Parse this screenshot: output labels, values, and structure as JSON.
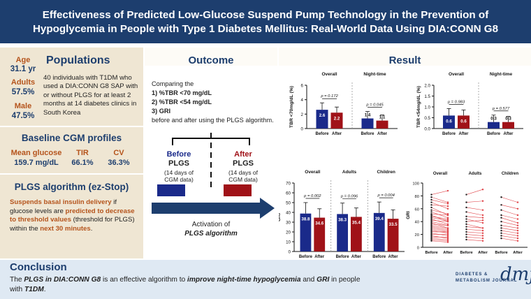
{
  "header": {
    "title_line1": "Effectiveness of Predicted Low-Glucose Suspend Pump Technology in the Prevention of",
    "title_line2": "Hypoglycemia in People with Type 1 Diabetes Mellitus: Real-World Data Using DIA:CONN G8"
  },
  "populations": {
    "title": "Populations",
    "stats": [
      {
        "label": "Age",
        "value": "31.1 yr"
      },
      {
        "label": "Adults",
        "value": "57.5%"
      },
      {
        "label": "Male",
        "value": "47.5%"
      }
    ],
    "description": "40 individuals with T1DM who used a DIA:CONN G8 SAP with or without PLGS for at least 2 months at 14 diabetes clinics in South Korea"
  },
  "baseline": {
    "title": "Baseline CGM profiles",
    "items": [
      {
        "label": "Mean glucose",
        "value": "159.7 mg/dL"
      },
      {
        "label": "TIR",
        "value": "66.1%"
      },
      {
        "label": "CV",
        "value": "36.3%"
      }
    ]
  },
  "plgs": {
    "title": "PLGS algorithm (ez-Stop)",
    "seg1": "Suspends basal insulin delivery",
    "seg2": " if glucose levels are ",
    "seg3": "predicted to decrease to threshold values",
    "seg4": " (threshold for PLGS) within the ",
    "seg5": "next 30 minutes",
    "seg6": "."
  },
  "outcome": {
    "title": "Outcome",
    "intro": "Comparing the",
    "items": [
      "1)  %TBR <70 mg/dL",
      "2)  %TBR <54 mg/dL",
      "3)  GRI"
    ],
    "outro": "before and after using the PLGS algorithm.",
    "before_label1": "Before",
    "before_label2": "PLGS",
    "before_sub1": "(14 days of",
    "before_sub2": "CGM data)",
    "after_label1": "After",
    "after_label2": "PLGS",
    "after_sub1": "(14 days of",
    "after_sub2": "CGM data)",
    "activation1": "Activation of",
    "activation2": "PLGS algorithm",
    "before_color": "#1a2a8a",
    "after_color": "#a01218"
  },
  "result": {
    "title": "Result"
  },
  "chart_data": [
    {
      "type": "bar",
      "ylabel": "TBR <70mg/dL (%)",
      "ylim": [
        0,
        6
      ],
      "yticks": [
        "0",
        "2",
        "4",
        "6"
      ],
      "groups": [
        {
          "title": "Overall",
          "p": "p = 0.172",
          "before": 2.6,
          "after": 2.2,
          "before_label": "2.6",
          "after_label": "2.2"
        },
        {
          "title": "Night-time",
          "p": "p = 0.045",
          "before": 1.4,
          "after": 1.1,
          "before_label": "1.4",
          "after_label": "1.1"
        }
      ],
      "categories": [
        "Before",
        "After"
      ]
    },
    {
      "type": "bar",
      "ylabel": "TBR <54mg/dL (%)",
      "ylim": [
        0,
        2.0
      ],
      "yticks": [
        "0.0",
        "0.5",
        "1.0",
        "1.5",
        "2.0"
      ],
      "groups": [
        {
          "title": "Overall",
          "p": "p = 0.983",
          "before": 0.6,
          "after": 0.6,
          "before_label": "0.6",
          "after_label": "0.6"
        },
        {
          "title": "Night-time",
          "p": "p = 0.577",
          "before": 0.3,
          "after": 0.3,
          "before_label": "0.3",
          "after_label": "0.3"
        }
      ],
      "categories": [
        "Before",
        "After"
      ]
    },
    {
      "type": "bar",
      "ylabel": "GRI",
      "ylim": [
        0,
        70
      ],
      "yticks": [
        "0",
        "10",
        "20",
        "30",
        "40",
        "50",
        "60",
        "70"
      ],
      "groups": [
        {
          "title": "Overall",
          "p": "p = 0.002",
          "before": 38.8,
          "after": 34.6,
          "before_label": "38.8",
          "after_label": "34.6"
        },
        {
          "title": "Adults",
          "p": "p = 0.096",
          "before": 38.3,
          "after": 35.4,
          "before_label": "38.3",
          "after_label": "35.4"
        },
        {
          "title": "Children",
          "p": "p = 0.004",
          "before": 39.4,
          "after": 33.5,
          "before_label": "39.4",
          "after_label": "33.5"
        }
      ],
      "categories": [
        "Before",
        "After"
      ]
    },
    {
      "type": "line",
      "ylabel": "GRI",
      "ylim": [
        0,
        100
      ],
      "yticks": [
        "0",
        "20",
        "40",
        "60",
        "80",
        "100"
      ],
      "groups": [
        {
          "title": "Overall",
          "before": [
            82,
            78,
            74,
            70,
            66,
            62,
            58,
            55,
            52,
            50,
            48,
            46,
            44,
            42,
            40,
            38,
            36,
            34,
            32,
            30,
            28,
            26,
            24,
            22,
            20,
            18,
            16,
            14,
            12,
            10
          ],
          "after": [
            88,
            70,
            68,
            60,
            64,
            50,
            52,
            46,
            50,
            40,
            44,
            42,
            36,
            40,
            34,
            30,
            34,
            30,
            28,
            26,
            24,
            22,
            24,
            18,
            20,
            14,
            16,
            12,
            10,
            8
          ]
        },
        {
          "title": "Adults",
          "before": [
            82,
            70,
            62,
            55,
            48,
            44,
            40,
            36,
            32,
            28,
            24,
            20,
            16,
            12
          ],
          "after": [
            90,
            72,
            58,
            50,
            46,
            38,
            42,
            30,
            30,
            26,
            22,
            18,
            14,
            10
          ]
        },
        {
          "title": "Children",
          "before": [
            78,
            66,
            58,
            50,
            46,
            40,
            34,
            30,
            26,
            22,
            18,
            14
          ],
          "after": [
            70,
            60,
            50,
            44,
            38,
            34,
            30,
            26,
            22,
            18,
            14,
            10
          ]
        }
      ],
      "categories": [
        "Before",
        "After"
      ]
    }
  ],
  "conclusion": {
    "title": "Conclusion",
    "s1": "The ",
    "s2": "PLGS in DIA:CONN G8",
    "s3": " is an effective algorithm to ",
    "s4": "improve night-time hypoglycemia",
    "s5": " and ",
    "s6": "GRI",
    "s7": " in people",
    "s8": "with ",
    "s9": "T1DM",
    "s10": "."
  },
  "logo": {
    "line1": "DIABETES &",
    "line2": "METABOLISM JOURNAL",
    "mark": "dmj"
  }
}
